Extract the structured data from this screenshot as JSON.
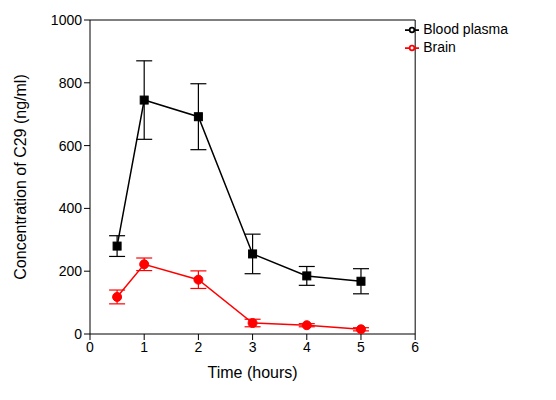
{
  "chart_data": {
    "type": "line",
    "x_label": "Time (hours)",
    "y_label": "Concentration of C29 (ng/ml)",
    "x": [
      0.5,
      1,
      2,
      3,
      4,
      5
    ],
    "series": [
      {
        "name": "Blood plasma",
        "color": "#000000",
        "marker": "square",
        "values": [
          280,
          745,
          692,
          255,
          185,
          168
        ],
        "errors": [
          33,
          125,
          105,
          63,
          30,
          40
        ]
      },
      {
        "name": "Brain",
        "color": "#ff0000",
        "marker": "circle",
        "values": [
          118,
          222,
          173,
          35,
          28,
          15
        ],
        "errors": [
          22,
          20,
          28,
          12,
          5,
          5
        ]
      }
    ],
    "xlim": [
      0,
      6
    ],
    "xticks": [
      0,
      1,
      2,
      3,
      4,
      5,
      6
    ],
    "ylim": [
      0,
      1000
    ],
    "yticks": [
      0,
      200,
      400,
      600,
      800,
      1000
    ],
    "legend": "upper right",
    "grid": false
  }
}
